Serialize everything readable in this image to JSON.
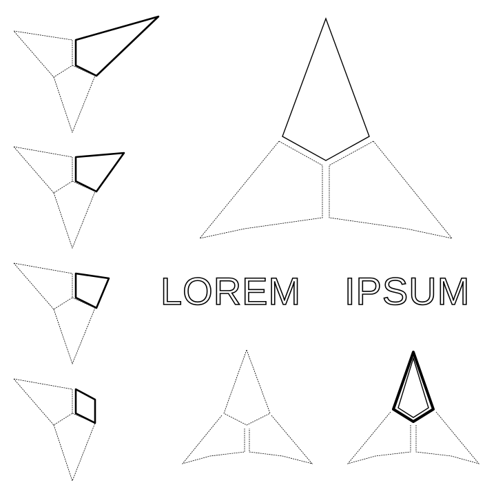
{
  "logo": {
    "word_1": "LOREM",
    "word_2": "IPSUM"
  },
  "icon_names": [
    "shape-logo-icon-variant-1",
    "shape-logo-icon-variant-2",
    "shape-logo-icon-variant-3",
    "shape-logo-icon-variant-4",
    "shape-logo-icon-large",
    "shape-logo-icon-small-thin",
    "shape-logo-icon-small-bold"
  ],
  "colors": {
    "background": "#ffffff",
    "stroke": "#000000"
  }
}
